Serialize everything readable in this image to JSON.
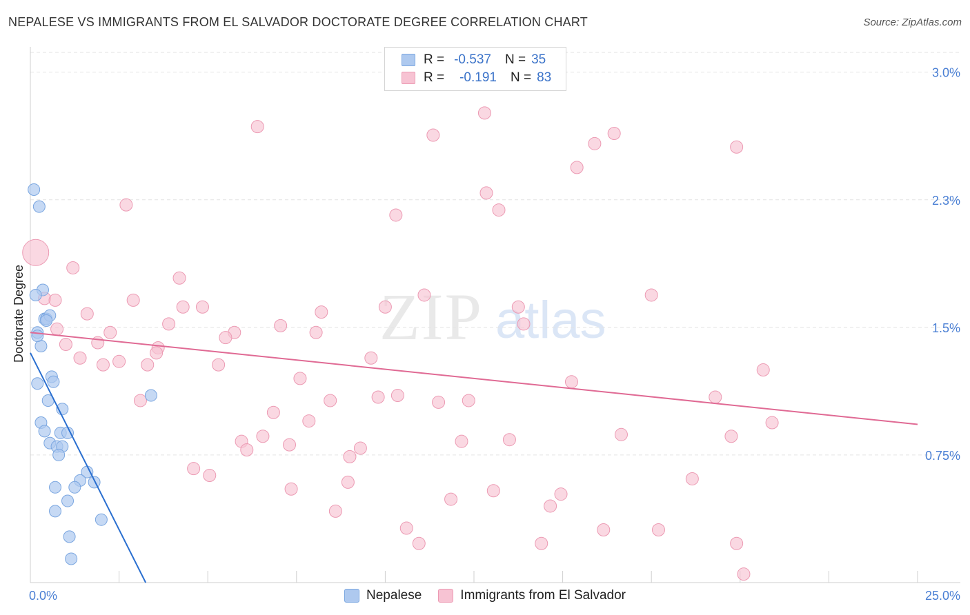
{
  "title": "NEPALESE VS IMMIGRANTS FROM EL SALVADOR DOCTORATE DEGREE CORRELATION CHART",
  "source": "Source: ZipAtlas.com",
  "watermark": {
    "zip": "ZIP",
    "atlas": "atlas"
  },
  "colors": {
    "blue_fill": "#aec9ef",
    "blue_stroke": "#7aa6e0",
    "blue_line": "#2a6fd0",
    "pink_fill": "#f7c3d3",
    "pink_stroke": "#ec9ab3",
    "pink_line": "#e06a94",
    "tick_text": "#4a7fd4",
    "grid": "#e3e3e3"
  },
  "stats": {
    "rows": [
      {
        "series": "Nepalese",
        "r_label": "R =",
        "r_value": "-0.537",
        "n_label": "N =",
        "n_value": "35"
      },
      {
        "series": "Immigrants from El Salvador",
        "r_label": "R =",
        "r_value": "-0.191",
        "n_label": "N =",
        "n_value": "83"
      }
    ]
  },
  "legend": {
    "items": [
      "Nepalese",
      "Immigrants from El Salvador"
    ]
  },
  "chart_data": {
    "type": "scatter",
    "title": "NEPALESE VS IMMIGRANTS FROM EL SALVADOR DOCTORATE DEGREE CORRELATION CHART",
    "xlabel": "",
    "ylabel": "Doctorate Degree",
    "xlim": [
      0,
      25
    ],
    "ylim": [
      0,
      3.1
    ],
    "x_tick_labels": {
      "min": "0.0%",
      "max": "25.0%"
    },
    "y_ticks": [
      {
        "value": 0.75,
        "label": "0.75%"
      },
      {
        "value": 1.5,
        "label": "1.5%"
      },
      {
        "value": 2.25,
        "label": "2.3%"
      },
      {
        "value": 3.0,
        "label": "3.0%"
      }
    ],
    "grid": true,
    "legend_position": "bottom-center",
    "series": [
      {
        "name": "Nepalese",
        "R": -0.537,
        "N": 35,
        "trend": {
          "x": [
            0.0,
            3.25
          ],
          "y": [
            1.35,
            0.0
          ]
        },
        "points": [
          {
            "x": 0.1,
            "y": 2.31
          },
          {
            "x": 0.25,
            "y": 2.21
          },
          {
            "x": 0.35,
            "y": 1.72
          },
          {
            "x": 0.15,
            "y": 1.69
          },
          {
            "x": 0.4,
            "y": 1.55
          },
          {
            "x": 0.45,
            "y": 1.55
          },
          {
            "x": 0.55,
            "y": 1.57
          },
          {
            "x": 0.2,
            "y": 1.47
          },
          {
            "x": 0.3,
            "y": 1.39
          },
          {
            "x": 0.6,
            "y": 1.21
          },
          {
            "x": 0.65,
            "y": 1.18
          },
          {
            "x": 0.2,
            "y": 1.17
          },
          {
            "x": 0.5,
            "y": 1.07
          },
          {
            "x": 0.9,
            "y": 1.02
          },
          {
            "x": 0.3,
            "y": 0.94
          },
          {
            "x": 0.4,
            "y": 0.89
          },
          {
            "x": 0.85,
            "y": 0.88
          },
          {
            "x": 1.05,
            "y": 0.88
          },
          {
            "x": 0.55,
            "y": 0.82
          },
          {
            "x": 0.75,
            "y": 0.8
          },
          {
            "x": 0.9,
            "y": 0.8
          },
          {
            "x": 0.8,
            "y": 0.75
          },
          {
            "x": 1.6,
            "y": 0.65
          },
          {
            "x": 1.4,
            "y": 0.6
          },
          {
            "x": 1.8,
            "y": 0.59
          },
          {
            "x": 0.7,
            "y": 0.56
          },
          {
            "x": 1.25,
            "y": 0.56
          },
          {
            "x": 1.05,
            "y": 0.48
          },
          {
            "x": 0.7,
            "y": 0.42
          },
          {
            "x": 2.0,
            "y": 0.37
          },
          {
            "x": 1.1,
            "y": 0.27
          },
          {
            "x": 1.15,
            "y": 0.14
          },
          {
            "x": 3.4,
            "y": 1.1
          },
          {
            "x": 0.45,
            "y": 1.54
          },
          {
            "x": 0.2,
            "y": 1.45
          }
        ]
      },
      {
        "name": "Immigrants from El Salvador",
        "R": -0.191,
        "N": 83,
        "trend": {
          "x": [
            0.0,
            25.0
          ],
          "y": [
            1.47,
            0.93
          ]
        },
        "points": [
          {
            "x": 0.15,
            "y": 1.94,
            "large": true
          },
          {
            "x": 0.4,
            "y": 1.67
          },
          {
            "x": 1.2,
            "y": 1.85
          },
          {
            "x": 2.7,
            "y": 2.22
          },
          {
            "x": 6.4,
            "y": 2.68
          },
          {
            "x": 11.35,
            "y": 2.63
          },
          {
            "x": 12.8,
            "y": 2.76
          },
          {
            "x": 15.9,
            "y": 2.58
          },
          {
            "x": 16.45,
            "y": 2.64
          },
          {
            "x": 19.9,
            "y": 2.56
          },
          {
            "x": 15.4,
            "y": 2.44
          },
          {
            "x": 12.85,
            "y": 2.29
          },
          {
            "x": 13.2,
            "y": 2.19
          },
          {
            "x": 10.3,
            "y": 2.16
          },
          {
            "x": 4.2,
            "y": 1.79
          },
          {
            "x": 2.9,
            "y": 1.66
          },
          {
            "x": 4.3,
            "y": 1.62
          },
          {
            "x": 4.85,
            "y": 1.62
          },
          {
            "x": 1.6,
            "y": 1.58
          },
          {
            "x": 8.2,
            "y": 1.59
          },
          {
            "x": 10.0,
            "y": 1.62
          },
          {
            "x": 11.1,
            "y": 1.69
          },
          {
            "x": 13.75,
            "y": 1.62
          },
          {
            "x": 17.5,
            "y": 1.69
          },
          {
            "x": 0.75,
            "y": 1.49
          },
          {
            "x": 2.25,
            "y": 1.47
          },
          {
            "x": 3.9,
            "y": 1.52
          },
          {
            "x": 5.75,
            "y": 1.47
          },
          {
            "x": 5.5,
            "y": 1.44
          },
          {
            "x": 7.05,
            "y": 1.51
          },
          {
            "x": 8.05,
            "y": 1.47
          },
          {
            "x": 13.9,
            "y": 1.52
          },
          {
            "x": 1.0,
            "y": 1.4
          },
          {
            "x": 1.9,
            "y": 1.41
          },
          {
            "x": 3.6,
            "y": 1.38
          },
          {
            "x": 3.55,
            "y": 1.35
          },
          {
            "x": 1.4,
            "y": 1.32
          },
          {
            "x": 2.05,
            "y": 1.28
          },
          {
            "x": 2.5,
            "y": 1.3
          },
          {
            "x": 3.3,
            "y": 1.28
          },
          {
            "x": 5.3,
            "y": 1.28
          },
          {
            "x": 9.6,
            "y": 1.32
          },
          {
            "x": 7.6,
            "y": 1.2
          },
          {
            "x": 15.25,
            "y": 1.18
          },
          {
            "x": 20.65,
            "y": 1.25
          },
          {
            "x": 3.1,
            "y": 1.07
          },
          {
            "x": 8.45,
            "y": 1.07
          },
          {
            "x": 9.8,
            "y": 1.09
          },
          {
            "x": 10.35,
            "y": 1.1
          },
          {
            "x": 11.5,
            "y": 1.06
          },
          {
            "x": 12.35,
            "y": 1.07
          },
          {
            "x": 19.3,
            "y": 1.09
          },
          {
            "x": 6.85,
            "y": 1.0
          },
          {
            "x": 7.85,
            "y": 0.95
          },
          {
            "x": 20.9,
            "y": 0.94
          },
          {
            "x": 6.55,
            "y": 0.86
          },
          {
            "x": 5.95,
            "y": 0.83
          },
          {
            "x": 7.3,
            "y": 0.81
          },
          {
            "x": 6.1,
            "y": 0.78
          },
          {
            "x": 9.3,
            "y": 0.79
          },
          {
            "x": 12.15,
            "y": 0.83
          },
          {
            "x": 13.5,
            "y": 0.84
          },
          {
            "x": 16.65,
            "y": 0.87
          },
          {
            "x": 19.75,
            "y": 0.86
          },
          {
            "x": 9.0,
            "y": 0.74
          },
          {
            "x": 4.6,
            "y": 0.67
          },
          {
            "x": 5.05,
            "y": 0.63
          },
          {
            "x": 18.65,
            "y": 0.61
          },
          {
            "x": 7.35,
            "y": 0.55
          },
          {
            "x": 8.95,
            "y": 0.59
          },
          {
            "x": 11.85,
            "y": 0.49
          },
          {
            "x": 13.05,
            "y": 0.54
          },
          {
            "x": 14.65,
            "y": 0.45
          },
          {
            "x": 14.95,
            "y": 0.52
          },
          {
            "x": 8.6,
            "y": 0.42
          },
          {
            "x": 10.6,
            "y": 0.32
          },
          {
            "x": 16.15,
            "y": 0.31
          },
          {
            "x": 17.7,
            "y": 0.31
          },
          {
            "x": 10.95,
            "y": 0.23
          },
          {
            "x": 14.4,
            "y": 0.23
          },
          {
            "x": 19.9,
            "y": 0.23
          },
          {
            "x": 20.1,
            "y": 0.05
          },
          {
            "x": 0.7,
            "y": 1.66
          }
        ]
      }
    ]
  }
}
